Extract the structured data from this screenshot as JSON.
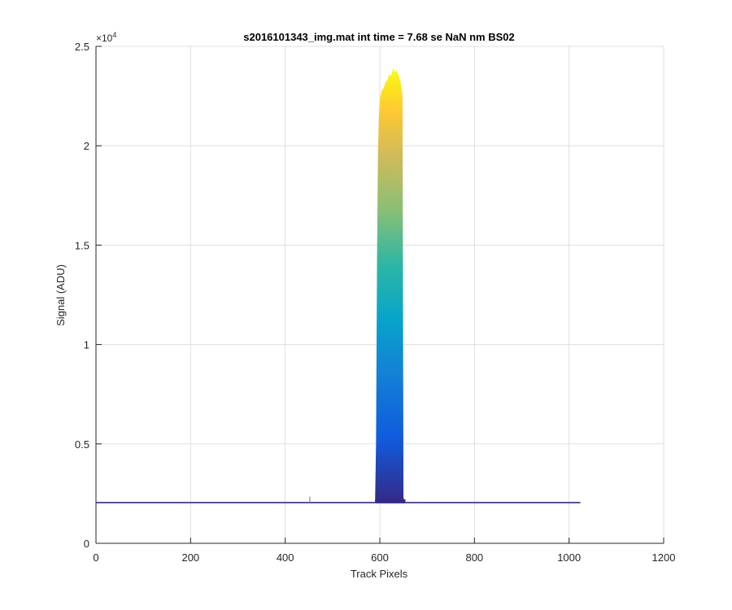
{
  "chart_data": {
    "type": "area",
    "title": "s2016101343_img.mat int time = 7.68 se  NaN nm BS02",
    "xlabel": "Track Pixels",
    "ylabel": "Signal (ADU)",
    "y_exponent_label": "×10",
    "y_exponent_power": "4",
    "xlim": [
      0,
      1200
    ],
    "ylim": [
      0,
      25000
    ],
    "x_ticks": [
      0,
      200,
      400,
      600,
      800,
      1000,
      1200
    ],
    "x_tick_labels": [
      "0",
      "200",
      "400",
      "600",
      "800",
      "1000",
      "1200"
    ],
    "y_ticks": [
      0,
      5000,
      10000,
      15000,
      20000,
      25000
    ],
    "y_tick_labels": [
      "0",
      "0.5",
      "1",
      "1.5",
      "2",
      "2.5"
    ],
    "grid": true,
    "colormap": "parula",
    "baseline": 2050,
    "x_extent": [
      1,
      1024
    ],
    "peak": {
      "x": [
        590,
        592,
        594,
        596,
        598,
        600,
        604,
        608,
        612,
        616,
        620,
        624,
        628,
        632,
        636,
        640,
        644,
        648,
        650,
        652,
        654
      ],
      "y": [
        2150,
        5000,
        14000,
        19500,
        21500,
        22300,
        22800,
        22900,
        23200,
        23300,
        23600,
        23500,
        23900,
        23700,
        23800,
        23500,
        23200,
        22500,
        2300,
        2150,
        2100
      ]
    },
    "spike": {
      "x": 452,
      "y": 2350
    }
  }
}
